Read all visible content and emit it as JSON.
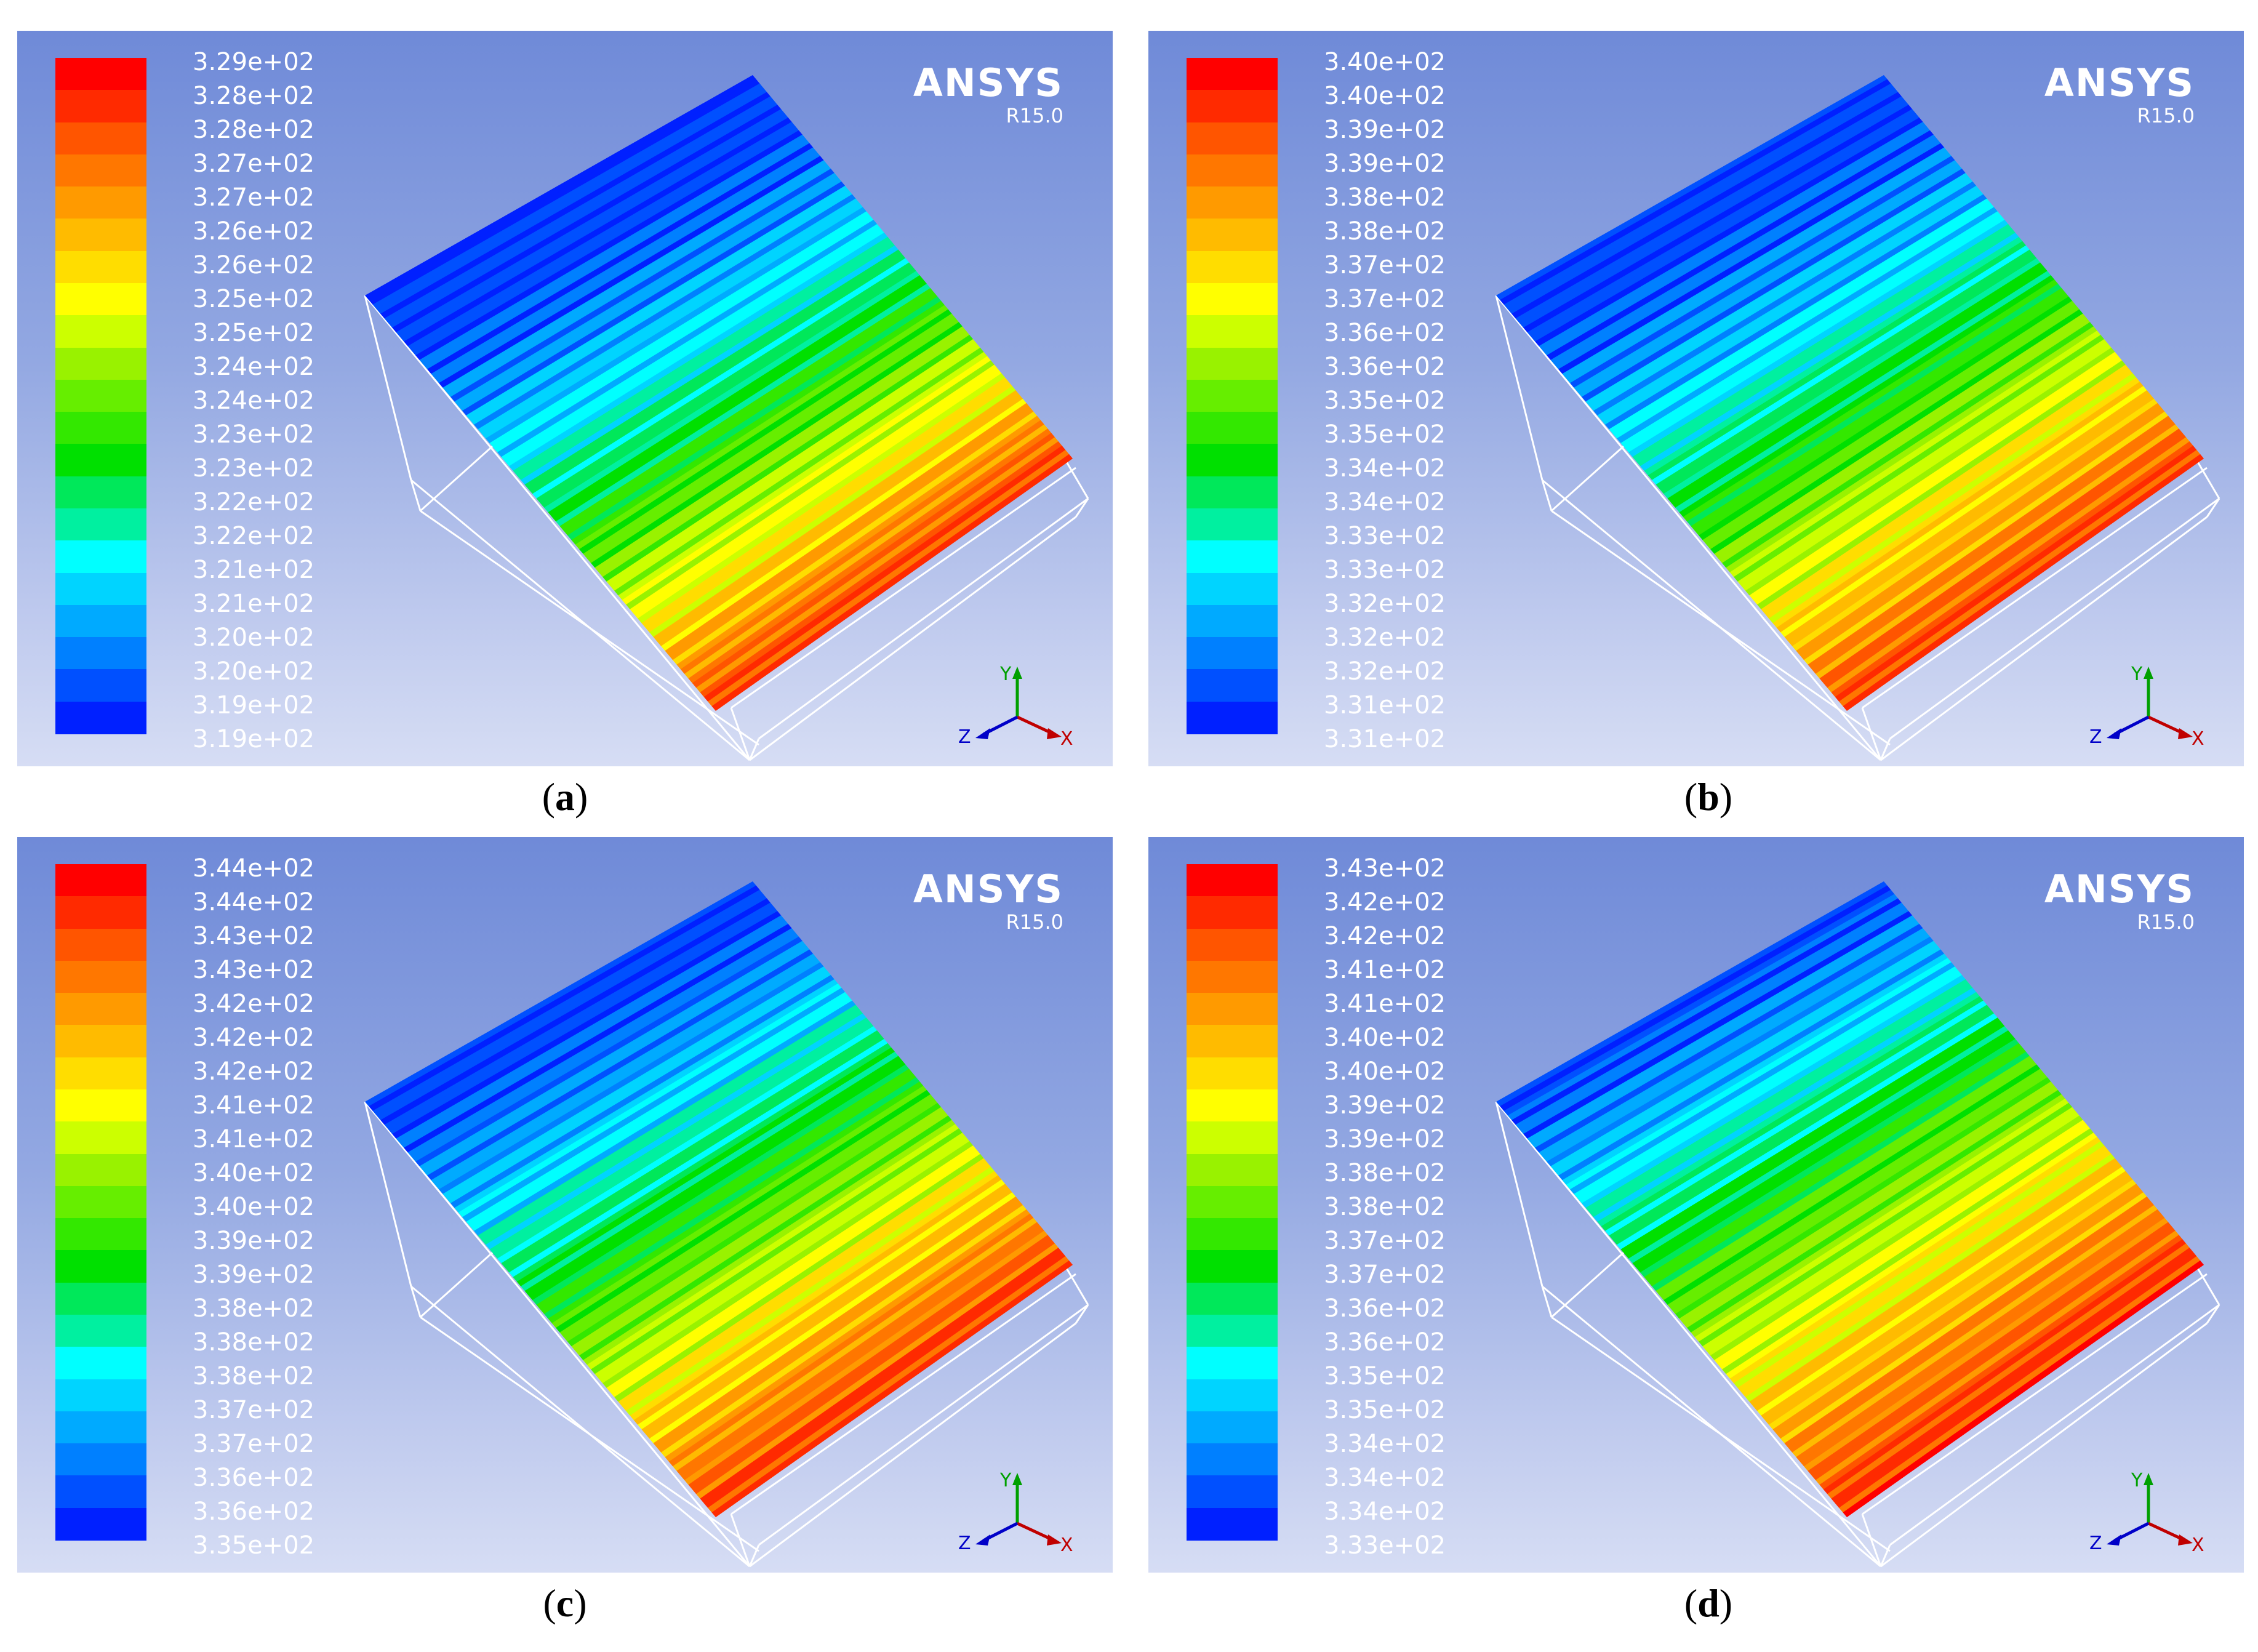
{
  "panels": [
    {
      "label": "a",
      "legend": [
        "3.29e+02",
        "3.28e+02",
        "3.28e+02",
        "3.27e+02",
        "3.27e+02",
        "3.26e+02",
        "3.26e+02",
        "3.25e+02",
        "3.25e+02",
        "3.24e+02",
        "3.24e+02",
        "3.23e+02",
        "3.23e+02",
        "3.22e+02",
        "3.22e+02",
        "3.21e+02",
        "3.21e+02",
        "3.20e+02",
        "3.20e+02",
        "3.19e+02",
        "3.19e+02"
      ],
      "brand": "ANSYS",
      "version": "R15.0",
      "axes": {
        "y": "Y",
        "z": "Z",
        "x": "X"
      }
    },
    {
      "label": "b",
      "legend": [
        "3.40e+02",
        "3.40e+02",
        "3.39e+02",
        "3.39e+02",
        "3.38e+02",
        "3.38e+02",
        "3.37e+02",
        "3.37e+02",
        "3.36e+02",
        "3.36e+02",
        "3.35e+02",
        "3.35e+02",
        "3.34e+02",
        "3.34e+02",
        "3.33e+02",
        "3.33e+02",
        "3.32e+02",
        "3.32e+02",
        "3.32e+02",
        "3.31e+02",
        "3.31e+02"
      ],
      "brand": "ANSYS",
      "version": "R15.0",
      "axes": {
        "y": "Y",
        "z": "Z",
        "x": "X"
      }
    },
    {
      "label": "c",
      "legend": [
        "3.44e+02",
        "3.44e+02",
        "3.43e+02",
        "3.43e+02",
        "3.42e+02",
        "3.42e+02",
        "3.42e+02",
        "3.41e+02",
        "3.41e+02",
        "3.40e+02",
        "3.40e+02",
        "3.39e+02",
        "3.39e+02",
        "3.38e+02",
        "3.38e+02",
        "3.38e+02",
        "3.37e+02",
        "3.37e+02",
        "3.36e+02",
        "3.36e+02",
        "3.35e+02"
      ],
      "brand": "ANSYS",
      "version": "R15.0",
      "axes": {
        "y": "Y",
        "z": "Z",
        "x": "X"
      }
    },
    {
      "label": "d",
      "legend": [
        "3.43e+02",
        "3.42e+02",
        "3.42e+02",
        "3.41e+02",
        "3.41e+02",
        "3.40e+02",
        "3.40e+02",
        "3.39e+02",
        "3.39e+02",
        "3.38e+02",
        "3.38e+02",
        "3.37e+02",
        "3.37e+02",
        "3.36e+02",
        "3.36e+02",
        "3.35e+02",
        "3.35e+02",
        "3.34e+02",
        "3.34e+02",
        "3.34e+02",
        "3.33e+02"
      ],
      "brand": "ANSYS",
      "version": "R15.0",
      "axes": {
        "y": "Y",
        "z": "Z",
        "x": "X"
      }
    }
  ],
  "colormap": [
    "#ff0000",
    "#ff2a00",
    "#ff5500",
    "#ff7700",
    "#ff9a00",
    "#ffbb00",
    "#ffdd00",
    "#ffff00",
    "#ccff00",
    "#99f200",
    "#66ee00",
    "#33e800",
    "#00e000",
    "#00e85a",
    "#00f0a0",
    "#00ffff",
    "#00d4ff",
    "#00aaff",
    "#0080ff",
    "#0050ff",
    "#0020ff"
  ],
  "colors": {
    "background": "#7f97db",
    "text": "#ffffff",
    "caption": "#000000"
  }
}
